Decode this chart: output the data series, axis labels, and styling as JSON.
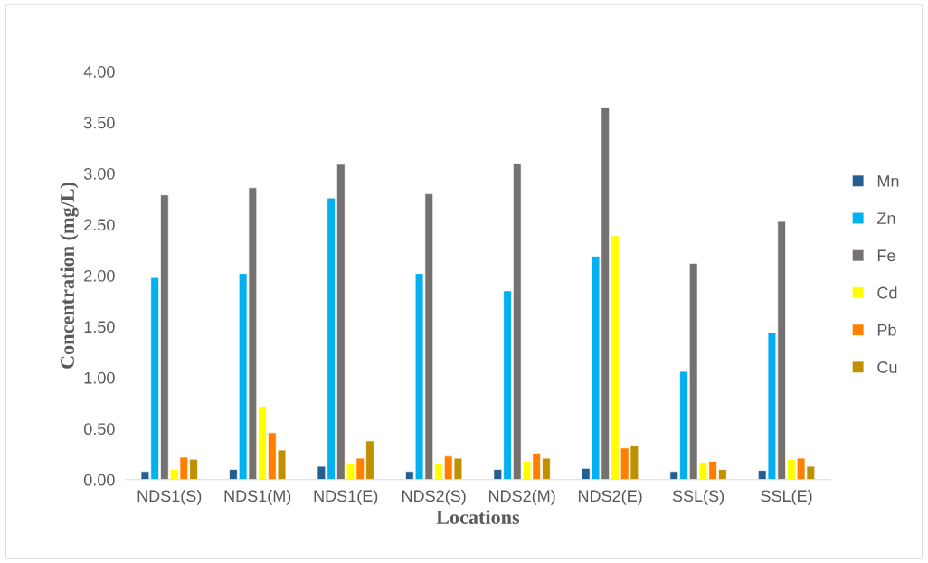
{
  "chart_data": {
    "type": "bar",
    "xlabel": "Locations",
    "ylabel": "Concentration (mg/L)",
    "categories": [
      "NDS1(S)",
      "NDS1(M)",
      "NDS1(E)",
      "NDS2(S)",
      "NDS2(M)",
      "NDS2(E)",
      "SSL(S)",
      "SSL(E)"
    ],
    "series": [
      {
        "name": "Mn",
        "color": "#255e91",
        "values": [
          0.08,
          0.1,
          0.13,
          0.08,
          0.1,
          0.11,
          0.08,
          0.09
        ]
      },
      {
        "name": "Zn",
        "color": "#00b0f0",
        "values": [
          1.98,
          2.02,
          2.76,
          2.02,
          1.85,
          2.19,
          1.06,
          1.44
        ]
      },
      {
        "name": "Fe",
        "color": "#767171",
        "values": [
          2.79,
          2.86,
          3.09,
          2.8,
          3.1,
          3.65,
          2.12,
          2.53
        ]
      },
      {
        "name": "Cd",
        "color": "#ffff00",
        "values": [
          0.1,
          0.72,
          0.16,
          0.16,
          0.18,
          2.39,
          0.17,
          0.2
        ]
      },
      {
        "name": "Pb",
        "color": "#ff8000",
        "values": [
          0.22,
          0.46,
          0.21,
          0.23,
          0.26,
          0.31,
          0.18,
          0.21
        ]
      },
      {
        "name": "Cu",
        "color": "#bf9000",
        "values": [
          0.2,
          0.29,
          0.38,
          0.21,
          0.21,
          0.33,
          0.1,
          0.13
        ]
      }
    ],
    "ylim": [
      0,
      4
    ],
    "yticks": [
      {
        "value": 0,
        "label": "0.00"
      },
      {
        "value": 0.5,
        "label": "0.50"
      },
      {
        "value": 1,
        "label": "1.00"
      },
      {
        "value": 1.5,
        "label": "1.50"
      },
      {
        "value": 2,
        "label": "2.00"
      },
      {
        "value": 2.5,
        "label": "2.50"
      },
      {
        "value": 3,
        "label": "3.00"
      },
      {
        "value": 3.5,
        "label": "3.50"
      },
      {
        "value": 4,
        "label": "4.00"
      }
    ],
    "grid": false,
    "legend": "right"
  }
}
